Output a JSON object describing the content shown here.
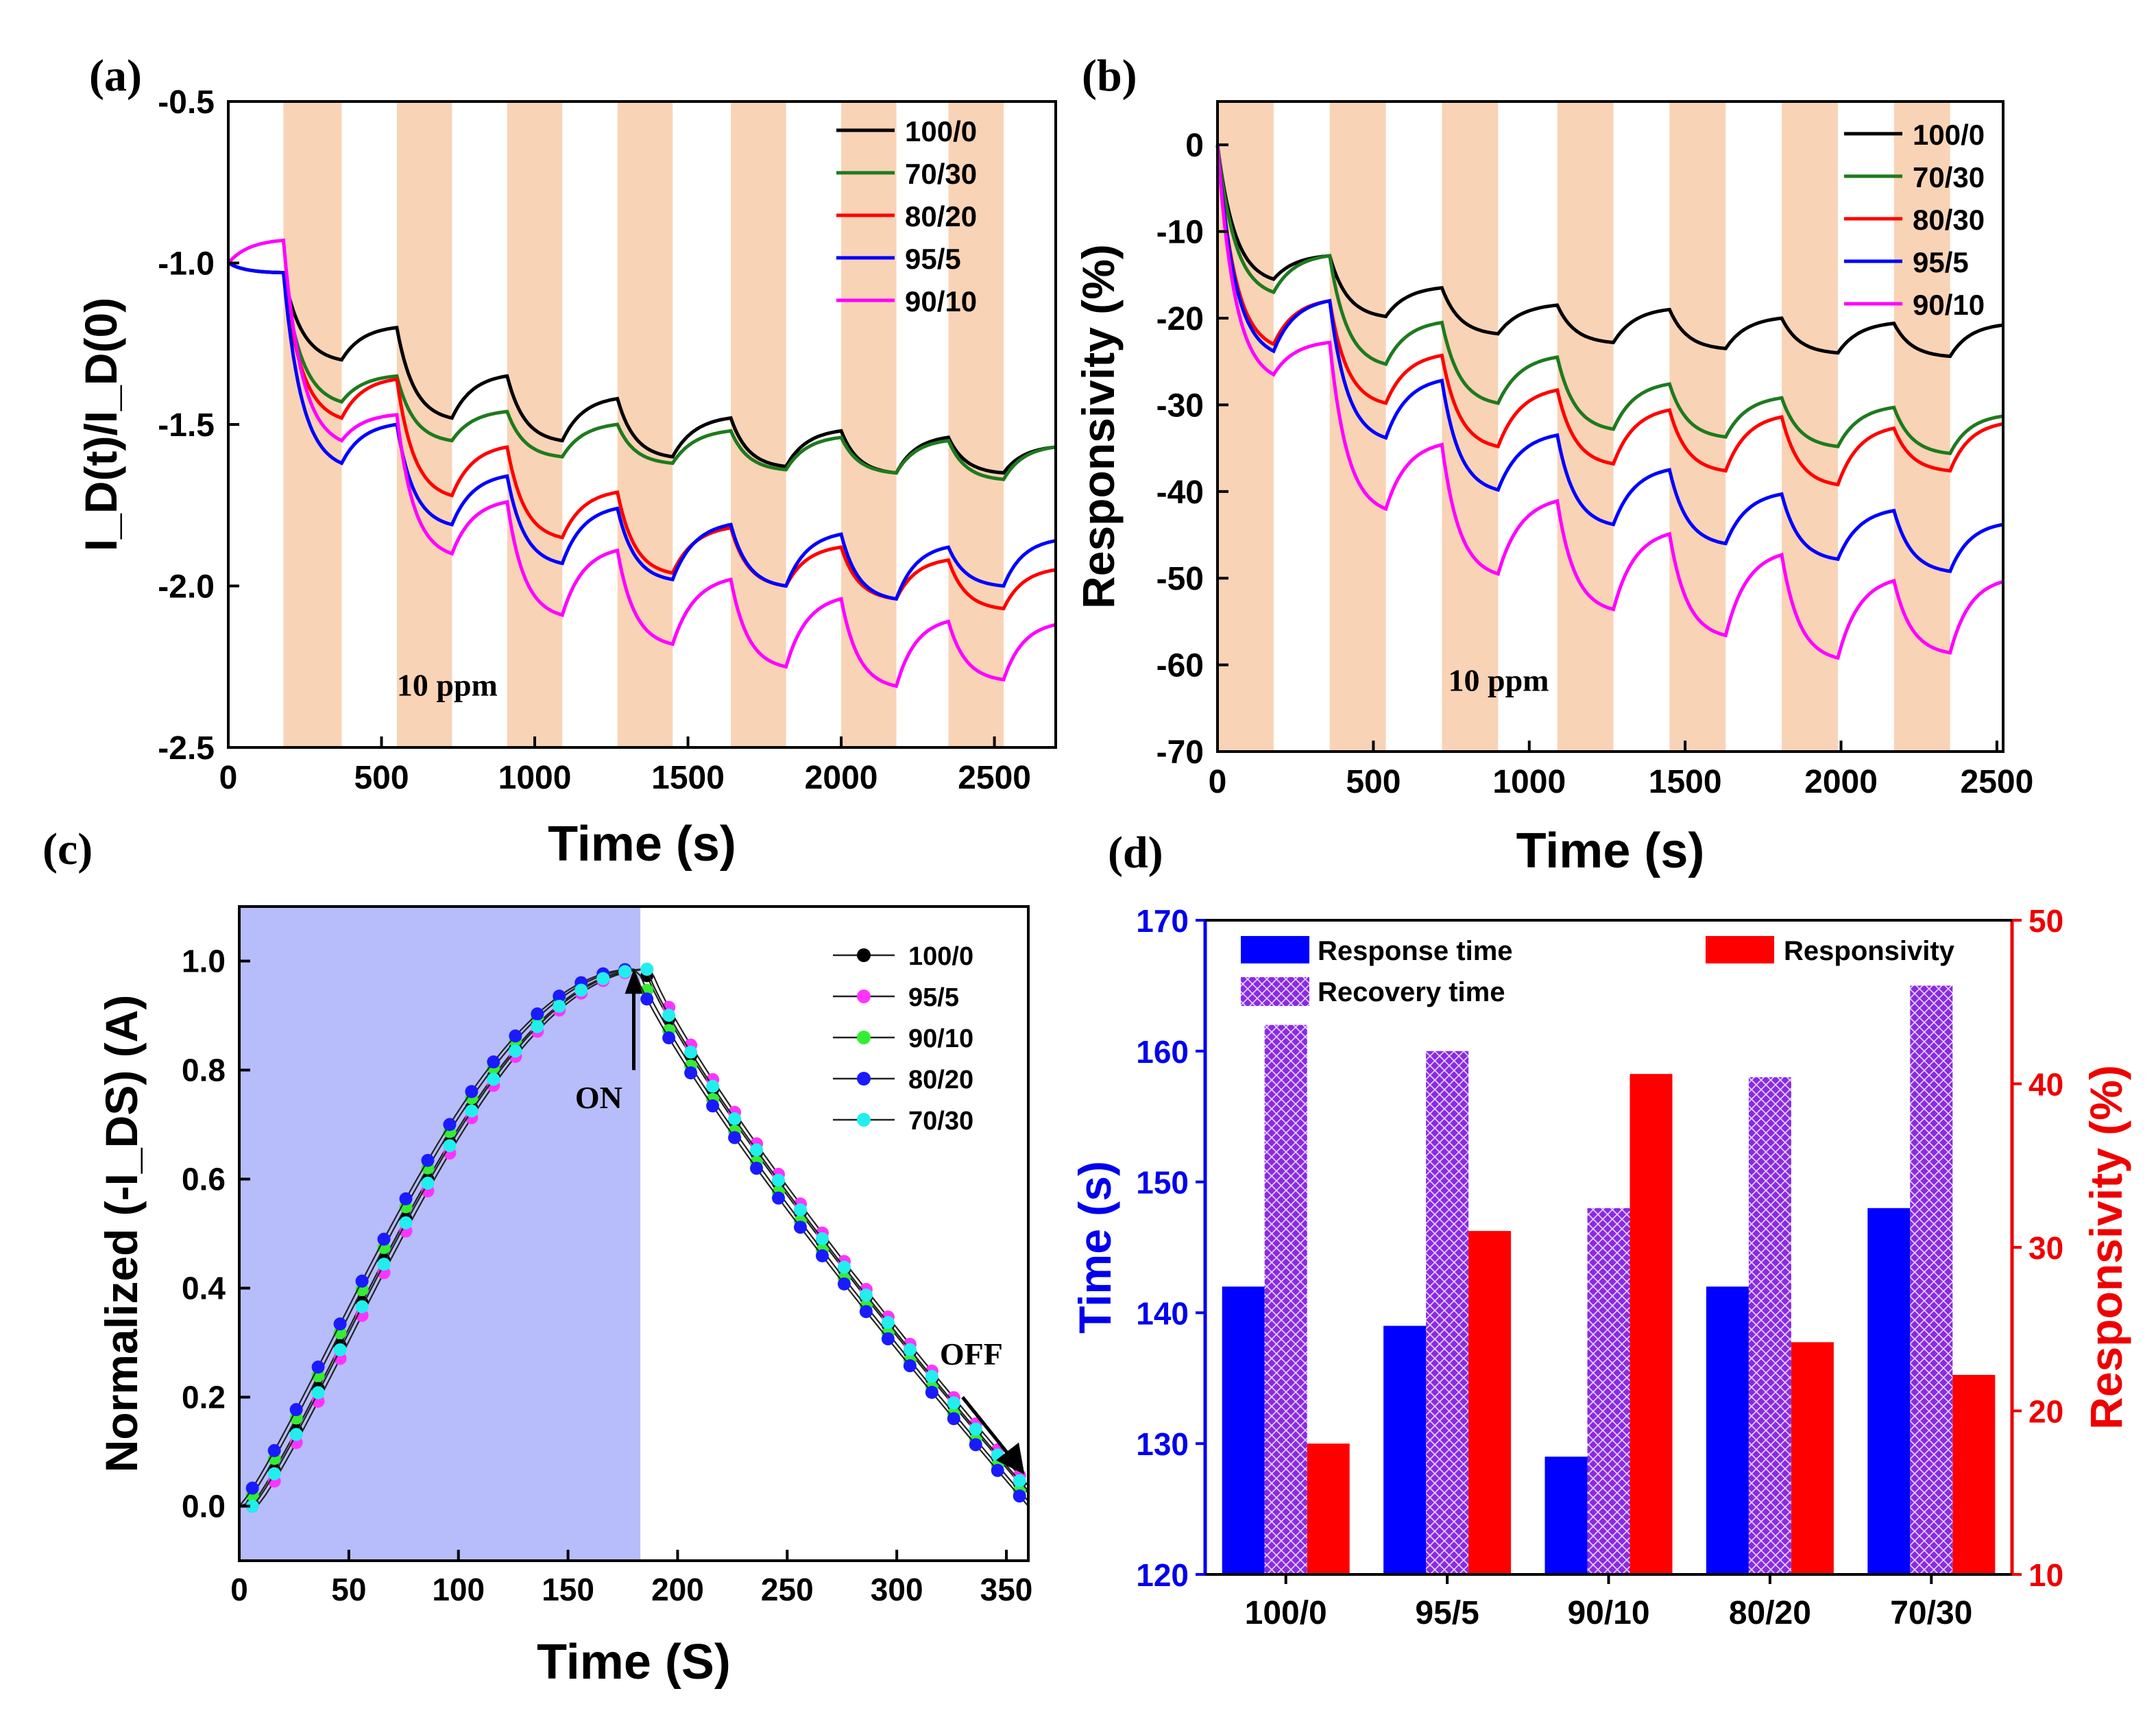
{
  "chart_data": [
    {
      "panel": "(a)",
      "type": "line",
      "xlabel": "Time (s)",
      "ylabel": "I_D(t)/I_D(0)",
      "xlim": [
        0,
        2700
      ],
      "ylim": [
        -2.5,
        -0.5
      ],
      "xticks": [
        0,
        500,
        1000,
        1500,
        2000,
        2500
      ],
      "yticks": [
        -2.5,
        -2.0,
        -1.5,
        -1.0,
        -0.5
      ],
      "ytick_labels": [
        "-2.5",
        "-2.0",
        "-1.5",
        "-1.0",
        "-0.5"
      ],
      "annotation": "10 ppm",
      "exposure_bands": [
        [
          180,
          370
        ],
        [
          550,
          730
        ],
        [
          910,
          1090
        ],
        [
          1270,
          1450
        ],
        [
          1640,
          1820
        ],
        [
          2000,
          2180
        ],
        [
          2350,
          2530
        ]
      ],
      "series": [
        {
          "name": "100/0",
          "color": "#000000",
          "x": [
            0,
            180,
            370,
            550,
            730,
            910,
            1090,
            1270,
            1450,
            1640,
            1820,
            2000,
            2180,
            2350,
            2530,
            2700
          ],
          "y": [
            -1.0,
            -1.03,
            -1.3,
            -1.2,
            -1.48,
            -1.35,
            -1.55,
            -1.42,
            -1.6,
            -1.48,
            -1.63,
            -1.52,
            -1.65,
            -1.54,
            -1.65,
            -1.57
          ]
        },
        {
          "name": "70/30",
          "color": "#1e7a1e",
          "x": [
            0,
            180,
            370,
            550,
            730,
            910,
            1090,
            1270,
            1450,
            1640,
            1820,
            2000,
            2180,
            2350,
            2530,
            2700
          ],
          "y": [
            -1.0,
            -1.03,
            -1.43,
            -1.35,
            -1.55,
            -1.46,
            -1.6,
            -1.5,
            -1.62,
            -1.52,
            -1.64,
            -1.54,
            -1.65,
            -1.55,
            -1.67,
            -1.57
          ]
        },
        {
          "name": "80/20",
          "color": "#ff0000",
          "x": [
            0,
            180,
            370,
            550,
            730,
            910,
            1090,
            1270,
            1450,
            1640,
            1820,
            2000,
            2180,
            2350,
            2530,
            2700
          ],
          "y": [
            -1.0,
            -1.03,
            -1.48,
            -1.36,
            -1.72,
            -1.57,
            -1.85,
            -1.71,
            -1.96,
            -1.82,
            -2.0,
            -1.88,
            -2.04,
            -1.92,
            -2.07,
            -1.95
          ]
        },
        {
          "name": "95/5",
          "color": "#0000ff",
          "x": [
            0,
            180,
            370,
            550,
            730,
            910,
            1090,
            1270,
            1450,
            1640,
            1820,
            2000,
            2180,
            2350,
            2530,
            2700
          ],
          "y": [
            -1.0,
            -1.03,
            -1.62,
            -1.5,
            -1.81,
            -1.66,
            -1.93,
            -1.76,
            -1.98,
            -1.81,
            -2.0,
            -1.84,
            -2.04,
            -1.88,
            -2.0,
            -1.86
          ]
        },
        {
          "name": "90/10",
          "color": "#ff00ff",
          "x": [
            0,
            180,
            370,
            550,
            730,
            910,
            1090,
            1270,
            1450,
            1640,
            1820,
            2000,
            2180,
            2350,
            2530,
            2700
          ],
          "y": [
            -1.0,
            -0.93,
            -1.55,
            -1.47,
            -1.9,
            -1.74,
            -2.09,
            -1.89,
            -2.18,
            -1.98,
            -2.25,
            -2.04,
            -2.31,
            -2.11,
            -2.29,
            -2.12
          ]
        }
      ]
    },
    {
      "panel": "(b)",
      "type": "line",
      "xlabel": "Time (s)",
      "ylabel": "Responsivity (%)",
      "xlim": [
        0,
        2520
      ],
      "ylim": [
        -70,
        5
      ],
      "xticks": [
        0,
        500,
        1000,
        1500,
        2000,
        2500
      ],
      "yticks": [
        -70,
        -60,
        -50,
        -40,
        -30,
        -20,
        -10,
        0
      ],
      "annotation": "10 ppm",
      "exposure_bands": [
        [
          0,
          180
        ],
        [
          360,
          540
        ],
        [
          720,
          900
        ],
        [
          1090,
          1270
        ],
        [
          1450,
          1630
        ],
        [
          1810,
          1990
        ],
        [
          2170,
          2350
        ]
      ],
      "series": [
        {
          "name": "100/0",
          "color": "#000000",
          "x": [
            0,
            180,
            360,
            540,
            720,
            900,
            1090,
            1270,
            1450,
            1630,
            1810,
            1990,
            2170,
            2350,
            2520
          ],
          "y": [
            0,
            -15.5,
            -12.8,
            -19.8,
            -16.5,
            -21.8,
            -18.5,
            -22.8,
            -19,
            -23.5,
            -20,
            -24,
            -20.6,
            -24.4,
            -20.8
          ]
        },
        {
          "name": "70/30",
          "color": "#1e7a1e",
          "x": [
            0,
            180,
            360,
            540,
            720,
            900,
            1090,
            1270,
            1450,
            1630,
            1810,
            1990,
            2170,
            2350,
            2520
          ],
          "y": [
            0,
            -17,
            -12.8,
            -25.3,
            -20.5,
            -29.8,
            -24.5,
            -32.8,
            -27.6,
            -33.7,
            -29.2,
            -34.8,
            -30.3,
            -35.6,
            -31.3
          ]
        },
        {
          "name": "80/30",
          "color": "#ff0000",
          "x": [
            0,
            180,
            360,
            540,
            720,
            900,
            1090,
            1270,
            1450,
            1630,
            1810,
            1990,
            2170,
            2350,
            2520
          ],
          "y": [
            0,
            -23,
            -18,
            -29.8,
            -24.3,
            -34.8,
            -28.3,
            -36.8,
            -30.6,
            -37.6,
            -31.4,
            -39.2,
            -32.7,
            -37.6,
            -32.2
          ]
        },
        {
          "name": "95/5",
          "color": "#0000ff",
          "x": [
            0,
            180,
            360,
            540,
            720,
            900,
            1090,
            1270,
            1450,
            1630,
            1810,
            1990,
            2170,
            2350,
            2520
          ],
          "y": [
            0,
            -23.8,
            -18,
            -33.8,
            -27.2,
            -39.8,
            -33.5,
            -43.8,
            -37.5,
            -46,
            -40.3,
            -47.8,
            -42.2,
            -49.2,
            -43.8
          ]
        },
        {
          "name": "90/10",
          "color": "#ff00ff",
          "x": [
            0,
            180,
            360,
            540,
            720,
            900,
            1090,
            1270,
            1450,
            1630,
            1810,
            1990,
            2170,
            2350,
            2520
          ],
          "y": [
            0,
            -26.5,
            -22.8,
            -42,
            -34.6,
            -49.5,
            -41.1,
            -53.6,
            -44.9,
            -56.6,
            -47.3,
            -59.2,
            -50.3,
            -58.6,
            -50.4
          ]
        }
      ]
    },
    {
      "panel": "(c)",
      "type": "line",
      "xlabel": "Time (S)",
      "ylabel": "Normalized (-I_DS) (A)",
      "xlim": [
        0,
        360
      ],
      "ylim": [
        -0.1,
        1.1
      ],
      "xticks": [
        0,
        50,
        100,
        150,
        200,
        250,
        300,
        350
      ],
      "yticks": [
        0.0,
        0.2,
        0.4,
        0.6,
        0.8,
        1.0
      ],
      "ytick_labels": [
        "0.0",
        "0.2",
        "0.4",
        "0.6",
        "0.8",
        "1.0"
      ],
      "shaded_range": [
        0,
        183
      ],
      "on_label": "ON",
      "off_label": "OFF",
      "series": [
        {
          "name": "100/0",
          "color": "#000000",
          "phase": 5
        },
        {
          "name": "95/5",
          "color": "#ff33ff",
          "phase": 8
        },
        {
          "name": "90/10",
          "color": "#33ee33",
          "phase": 2
        },
        {
          "name": "80/20",
          "color": "#1a1aff",
          "phase": 0
        },
        {
          "name": "70/30",
          "color": "#22eeee",
          "phase": 6
        }
      ]
    },
    {
      "panel": "(d)",
      "type": "bar",
      "categories": [
        "100/0",
        "95/5",
        "90/10",
        "80/20",
        "70/30"
      ],
      "ylabel_left": "Time (s)",
      "ylabel_right": "Responsivity (%)",
      "ylim_left": [
        120,
        170
      ],
      "ylim_right": [
        10,
        50
      ],
      "yticks_left": [
        120,
        130,
        140,
        150,
        160,
        170
      ],
      "yticks_right": [
        10,
        20,
        30,
        40,
        50
      ],
      "left_color": "#0000ee",
      "right_color": "#ee0000",
      "series": [
        {
          "name": "Response time",
          "axis": "left",
          "color": "#0000ff",
          "values": [
            142,
            139,
            129,
            142,
            148
          ]
        },
        {
          "name": "Recovery time",
          "axis": "left",
          "color": "#8a2be2",
          "pattern": "crosshatch",
          "values": [
            162,
            160,
            148,
            158,
            165
          ]
        },
        {
          "name": "Responsivity",
          "axis": "right",
          "color": "#ff0000",
          "values": [
            18,
            31,
            40.6,
            24.2,
            22.2
          ]
        }
      ]
    }
  ]
}
